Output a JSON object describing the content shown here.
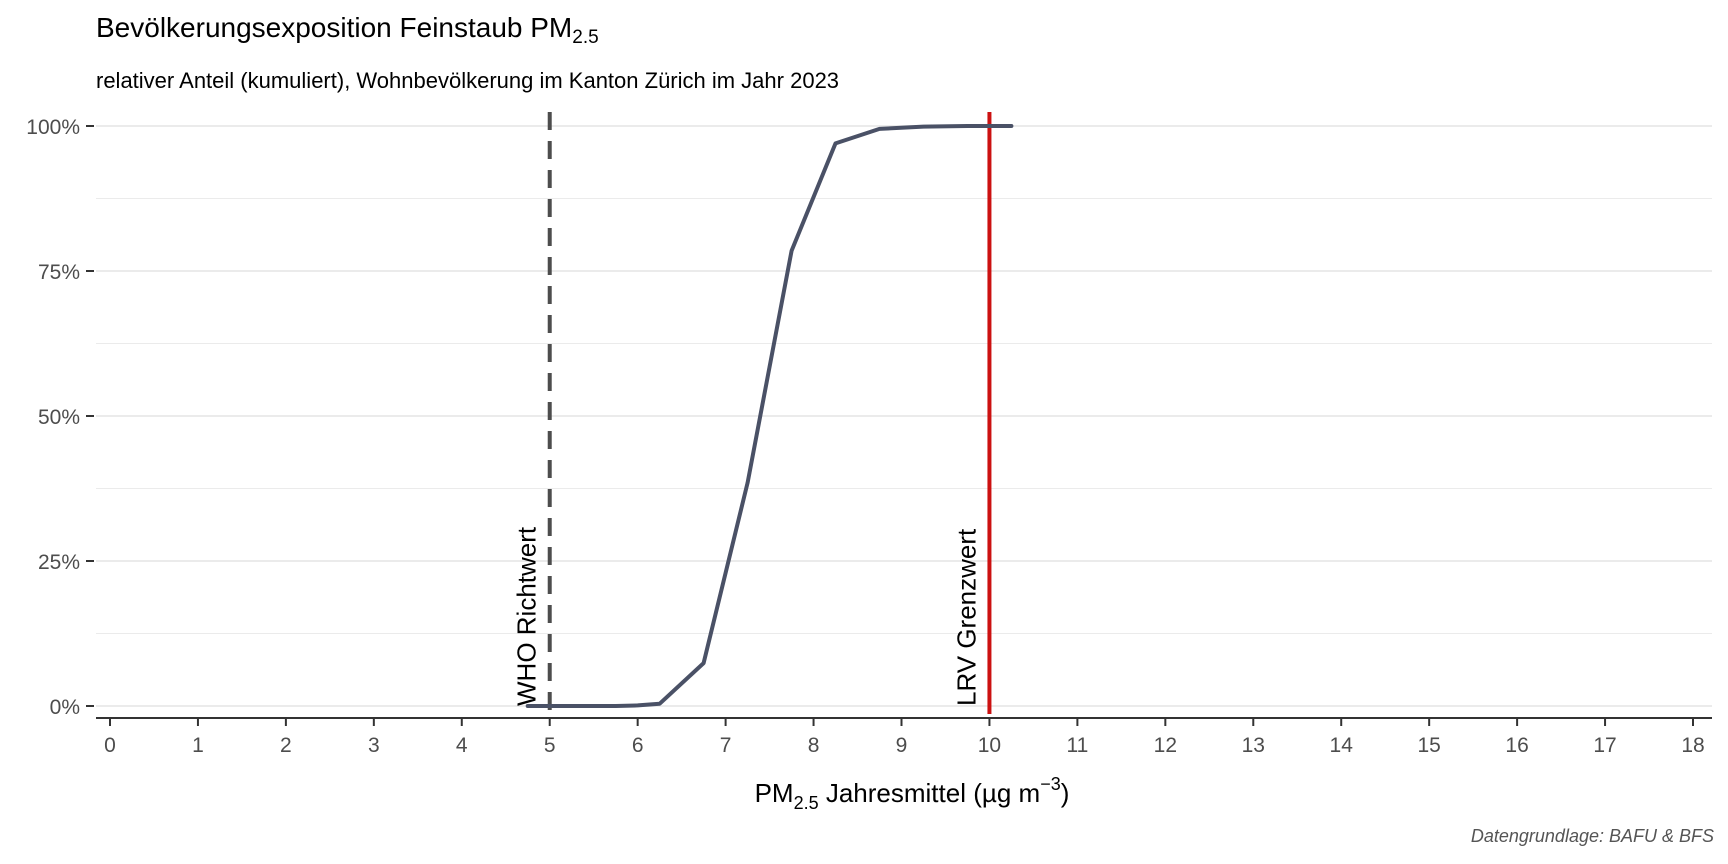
{
  "title": {
    "main": "Bevölkerungsexposition Feinstaub PM",
    "subscript": "2.5"
  },
  "subtitle": "relativer Anteil (kumuliert), Wohnbevölkerung im Kanton Zürich im Jahr 2023",
  "caption": "Datengrundlage: BAFU & BFS",
  "xlabel": {
    "prefix": "PM",
    "subscript": "2.5",
    "text": " Jahresmittel (µg m",
    "superscript": "−3",
    "suffix": ")"
  },
  "colors": {
    "series": "#4a5166",
    "who_line": "#4d4d4d",
    "lrv_line": "#cc1111",
    "grid": "#ebebeb",
    "axis": "#333333",
    "tick_text": "#4d4d4d"
  },
  "chart_data": {
    "type": "line",
    "title": "Bevölkerungsexposition Feinstaub PM2.5",
    "subtitle": "relativer Anteil (kumuliert), Wohnbevölkerung im Kanton Zürich im Jahr 2023",
    "xlabel": "PM2.5 Jahresmittel (µg m−3)",
    "ylabel": "",
    "xlim": [
      0,
      18
    ],
    "ylim": [
      0,
      1
    ],
    "x_ticks": [
      0,
      1,
      2,
      3,
      4,
      5,
      6,
      7,
      8,
      9,
      10,
      11,
      12,
      13,
      14,
      15,
      16,
      17,
      18
    ],
    "y_ticks": [
      0,
      0.25,
      0.5,
      0.75,
      1
    ],
    "y_tick_labels": [
      "0%",
      "25%",
      "50%",
      "75%",
      "100%"
    ],
    "grid": true,
    "series": [
      {
        "x": [
          4.75,
          5.25,
          5.75,
          6.0,
          6.25,
          6.75,
          7.25,
          7.75,
          8.25,
          8.75,
          9.25,
          9.75,
          10.25
        ],
        "y": [
          0.0,
          0.0,
          0.0,
          0.001,
          0.004,
          0.074,
          0.385,
          0.785,
          0.97,
          0.995,
          0.999,
          1.0,
          1.0
        ]
      }
    ],
    "reference_lines": [
      {
        "x": 5,
        "label": "WHO Richtwert",
        "style": "dashed",
        "color": "#4d4d4d"
      },
      {
        "x": 10,
        "label": "LRV Grenzwert",
        "style": "solid",
        "color": "#cc1111"
      }
    ]
  }
}
